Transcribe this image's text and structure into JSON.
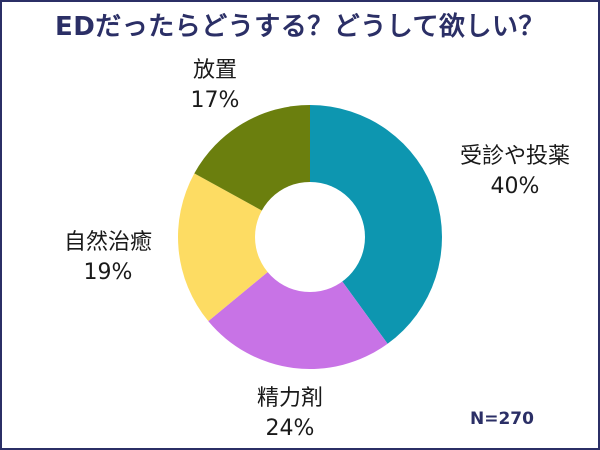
{
  "title": "EDだったらどうする？どうして欲しい？",
  "sample_size": "N=270",
  "chart_data": {
    "type": "pie",
    "title": "EDだったらどうする？どうして欲しい？",
    "hole": true,
    "slices": [
      {
        "label": "受診や投薬",
        "value": 40,
        "display": "40%",
        "color": "#0d96b0"
      },
      {
        "label": "精力剤",
        "value": 24,
        "display": "24%",
        "color": "#c873e6"
      },
      {
        "label": "自然治癒",
        "value": 19,
        "display": "19%",
        "color": "#fddc63"
      },
      {
        "label": "放置",
        "value": 17,
        "display": "17%",
        "color": "#6b7f0e"
      }
    ]
  }
}
